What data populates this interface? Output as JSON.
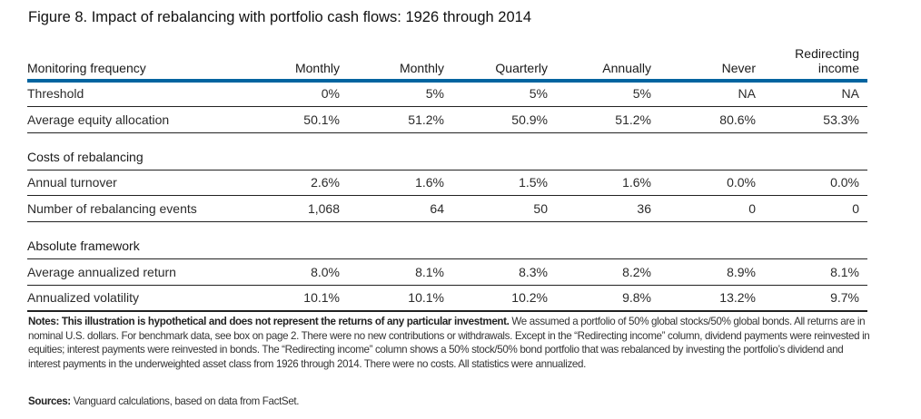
{
  "title": "Figure 8. Impact of rebalancing with portfolio cash flows: 1926 through 2014",
  "header": {
    "label": "Monitoring frequency",
    "columns": [
      "Monthly",
      "Monthly",
      "Quarterly",
      "Annually",
      "Never",
      "Redirecting income"
    ]
  },
  "rows_top": [
    {
      "label": "Threshold",
      "values": [
        "0%",
        "5%",
        "5%",
        "5%",
        "NA",
        "NA"
      ]
    },
    {
      "label": "Average equity allocation",
      "values": [
        "50.1%",
        "51.2%",
        "50.9%",
        "51.2%",
        "80.6%",
        "53.3%"
      ]
    }
  ],
  "section_costs": {
    "title": "Costs of rebalancing",
    "rows": [
      {
        "label": "Annual turnover",
        "values": [
          "2.6%",
          "1.6%",
          "1.5%",
          "1.6%",
          "0.0%",
          "0.0%"
        ]
      },
      {
        "label": "Number of rebalancing events",
        "values": [
          "1,068",
          "64",
          "50",
          "36",
          "0",
          "0"
        ]
      }
    ]
  },
  "section_absolute": {
    "title": "Absolute framework",
    "rows": [
      {
        "label": "Average annualized return",
        "values": [
          "8.0%",
          "8.1%",
          "8.3%",
          "8.2%",
          "8.9%",
          "8.1%"
        ]
      },
      {
        "label": "Annualized volatility",
        "values": [
          "10.1%",
          "10.1%",
          "10.2%",
          "9.8%",
          "13.2%",
          "9.7%"
        ]
      }
    ]
  },
  "notes": {
    "lead": "Notes:",
    "bold": "This illustration is hypothetical and does not represent the returns of any particular investment.",
    "body": "We assumed a portfolio of 50% global stocks/50% global bonds. All returns are in nominal U.S. dollars. For benchmark data, see box on page 2. There were no new contributions or withdrawals. Except in the “Redirecting income” column, dividend payments were reinvested in equities; interest payments were reinvested in bonds. The “Redirecting income” column shows a 50% stock/50% bond portfolio that was rebalanced by investing the portfolio’s dividend and interest payments in the underweighted asset class from 1926 through 2014. There were no costs. All statistics were annualized."
  },
  "sources": {
    "lead": "Sources:",
    "body": "Vanguard calculations, based on data from FactSet."
  },
  "colors": {
    "accent_rule": "#0064a0"
  }
}
